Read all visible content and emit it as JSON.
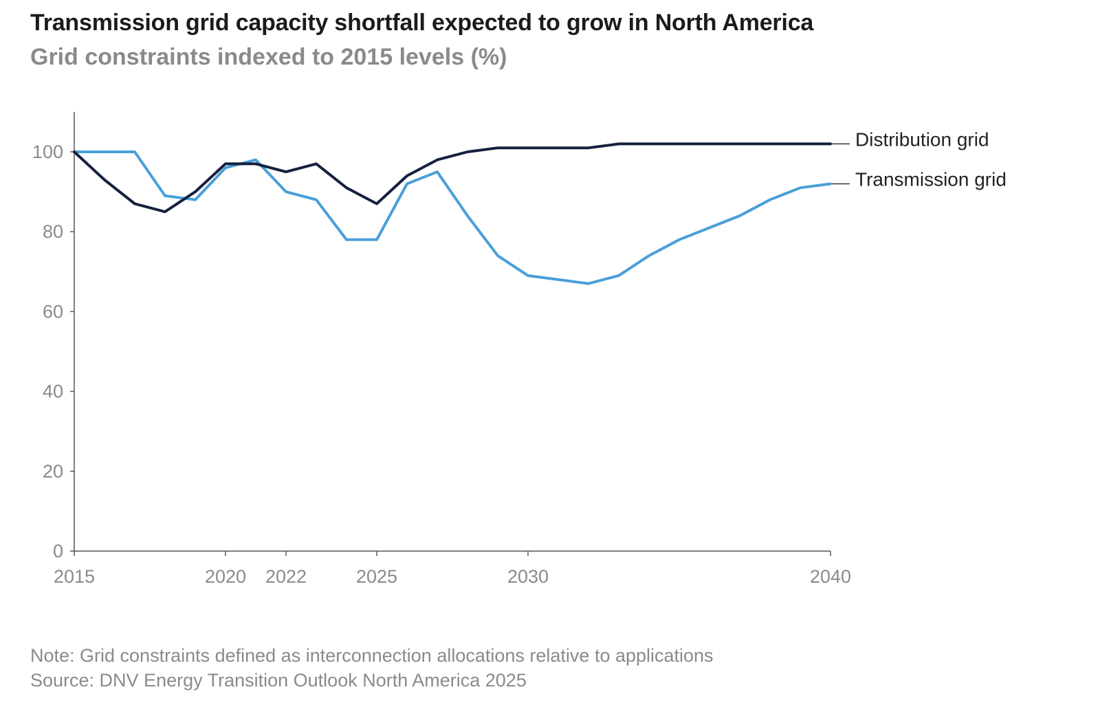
{
  "title": "Transmission grid capacity shortfall expected to grow in North America",
  "subtitle": "Grid constraints indexed to 2015 levels (%)",
  "note": "Note: Grid constraints defined as interconnection allocations relative to applications",
  "source": "Source: DNV Energy Transition Outlook North America 2025",
  "chart_data": {
    "type": "line",
    "xlim": [
      2015,
      2040
    ],
    "ylim": [
      0,
      110
    ],
    "x_ticks": [
      2015,
      2020,
      2022,
      2025,
      2030,
      2040
    ],
    "x_tick_labels": [
      "2015",
      "2020",
      "2022",
      "2025",
      "2030",
      "2040"
    ],
    "y_ticks": [
      0,
      20,
      40,
      60,
      80,
      100
    ],
    "y_tick_labels": [
      "0",
      "20",
      "40",
      "60",
      "80",
      "100"
    ],
    "grid": false,
    "legend": "direct labels at line ends (right)",
    "x": [
      2015,
      2016,
      2017,
      2018,
      2019,
      2020,
      2021,
      2022,
      2023,
      2024,
      2025,
      2026,
      2027,
      2028,
      2029,
      2030,
      2031,
      2032,
      2033,
      2034,
      2035,
      2036,
      2037,
      2038,
      2039,
      2040
    ],
    "series": [
      {
        "name": "Distribution grid",
        "color": "#14203d",
        "values": [
          100,
          93,
          87,
          85,
          90,
          97,
          97,
          95,
          97,
          91,
          87,
          94,
          98,
          100,
          101,
          101,
          101,
          101,
          102,
          102,
          102,
          102,
          102,
          102,
          102,
          102
        ]
      },
      {
        "name": "Transmission grid",
        "color": "#4a9fd8",
        "values": [
          100,
          100,
          100,
          89,
          88,
          96,
          98,
          90,
          88,
          78,
          78,
          92,
          95,
          84,
          74,
          69,
          68,
          67,
          69,
          74,
          78,
          81,
          84,
          88,
          91,
          92
        ]
      }
    ]
  }
}
